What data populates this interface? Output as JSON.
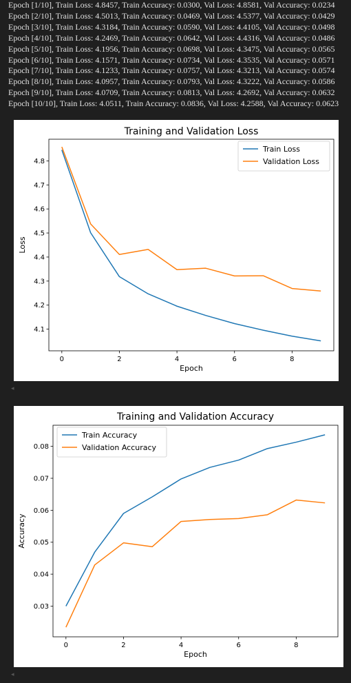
{
  "log": {
    "lines": [
      "Epoch [1/10], Train Loss: 4.8457, Train Accuracy: 0.0300, Val Loss: 4.8581, Val Accuracy: 0.0234",
      "Epoch [2/10], Train Loss: 4.5013, Train Accuracy: 0.0469, Val Loss: 4.5377, Val Accuracy: 0.0429",
      "Epoch [3/10], Train Loss: 4.3184, Train Accuracy: 0.0590, Val Loss: 4.4105, Val Accuracy: 0.0498",
      "Epoch [4/10], Train Loss: 4.2469, Train Accuracy: 0.0642, Val Loss: 4.4316, Val Accuracy: 0.0486",
      "Epoch [5/10], Train Loss: 4.1956, Train Accuracy: 0.0698, Val Loss: 4.3475, Val Accuracy: 0.0565",
      "Epoch [6/10], Train Loss: 4.1571, Train Accuracy: 0.0734, Val Loss: 4.3535, Val Accuracy: 0.0571",
      "Epoch [7/10], Train Loss: 4.1233, Train Accuracy: 0.0757, Val Loss: 4.3213, Val Accuracy: 0.0574",
      "Epoch [8/10], Train Loss: 4.0957, Train Accuracy: 0.0793, Val Loss: 4.3222, Val Accuracy: 0.0586",
      "Epoch [9/10], Train Loss: 4.0709, Train Accuracy: 0.0813, Val Loss: 4.2692, Val Accuracy: 0.0632",
      "Epoch [10/10], Train Loss: 4.0511, Train Accuracy: 0.0836, Val Loss: 4.2588, Val Accuracy: 0.0623"
    ]
  },
  "scroll_glyph": "◂",
  "chart_data": [
    {
      "type": "line",
      "title": "Training and Validation Loss",
      "xlabel": "Epoch",
      "ylabel": "Loss",
      "x": [
        0,
        1,
        2,
        3,
        4,
        5,
        6,
        7,
        8,
        9
      ],
      "xlim": [
        -0.45,
        9.45
      ],
      "ylim": [
        4.01,
        4.89
      ],
      "xticks": [
        0,
        2,
        4,
        6,
        8
      ],
      "yticks": [
        4.1,
        4.2,
        4.3,
        4.4,
        4.5,
        4.6,
        4.7,
        4.8
      ],
      "ytick_labels": [
        "4.1",
        "4.2",
        "4.3",
        "4.4",
        "4.5",
        "4.6",
        "4.7",
        "4.8"
      ],
      "legend": "top-right",
      "grid": false,
      "series": [
        {
          "name": "Train Loss",
          "color": "#1f77b4",
          "values": [
            4.8457,
            4.5013,
            4.3184,
            4.2469,
            4.1956,
            4.1571,
            4.1233,
            4.0957,
            4.0709,
            4.0511
          ]
        },
        {
          "name": "Validation Loss",
          "color": "#ff7f0e",
          "values": [
            4.8581,
            4.5377,
            4.4105,
            4.4316,
            4.3475,
            4.3535,
            4.3213,
            4.3222,
            4.2692,
            4.2588
          ]
        }
      ]
    },
    {
      "type": "line",
      "title": "Training and Validation Accuracy",
      "xlabel": "Epoch",
      "ylabel": "Accuracy",
      "x": [
        0,
        1,
        2,
        3,
        4,
        5,
        6,
        7,
        8,
        9
      ],
      "xlim": [
        -0.45,
        9.45
      ],
      "ylim": [
        0.0204,
        0.0866
      ],
      "xticks": [
        0,
        2,
        4,
        6,
        8
      ],
      "yticks": [
        0.03,
        0.04,
        0.05,
        0.06,
        0.07,
        0.08
      ],
      "ytick_labels": [
        "0.03",
        "0.04",
        "0.05",
        "0.06",
        "0.07",
        "0.08"
      ],
      "legend": "top-left",
      "grid": false,
      "series": [
        {
          "name": "Train Accuracy",
          "color": "#1f77b4",
          "values": [
            0.03,
            0.0469,
            0.059,
            0.0642,
            0.0698,
            0.0734,
            0.0757,
            0.0793,
            0.0813,
            0.0836
          ]
        },
        {
          "name": "Validation Accuracy",
          "color": "#ff7f0e",
          "values": [
            0.0234,
            0.0429,
            0.0498,
            0.0486,
            0.0565,
            0.0571,
            0.0574,
            0.0586,
            0.0632,
            0.0623
          ]
        }
      ]
    }
  ]
}
